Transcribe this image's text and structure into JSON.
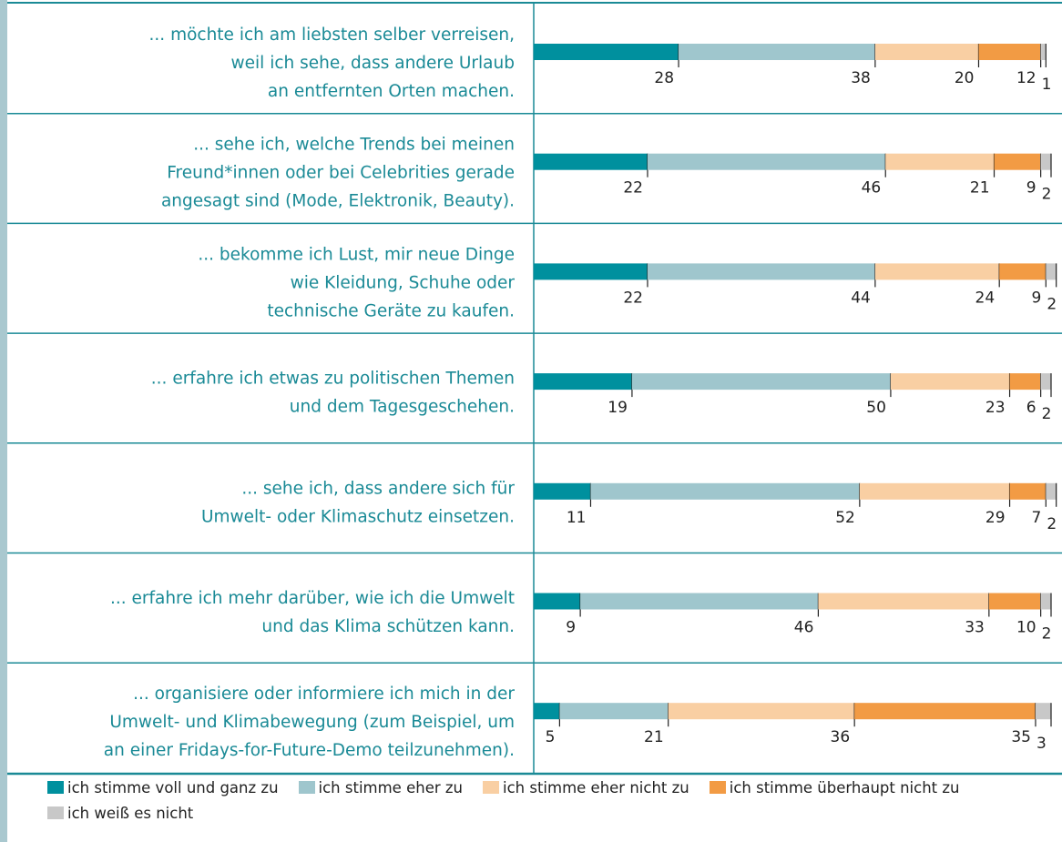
{
  "chart_data": {
    "type": "stacked-bar",
    "categories": [
      [
        "... möchte ich am liebsten selber verreisen,",
        "weil ich sehe, dass andere Urlaub",
        "an entfernten Orten machen."
      ],
      [
        "... sehe ich, welche Trends bei meinen",
        "Freund*innen oder bei Celebrities gerade",
        "angesagt sind (Mode, Elektronik, Beauty)."
      ],
      [
        "... bekomme ich Lust, mir neue Dinge",
        "wie Kleidung, Schuhe oder",
        "technische Geräte zu kaufen."
      ],
      [
        "... erfahre ich etwas zu politischen Themen",
        "und dem Tagesgeschehen."
      ],
      [
        "... sehe ich, dass andere sich für",
        "Umwelt- oder Klimaschutz einsetzen."
      ],
      [
        "... erfahre ich mehr darüber, wie ich die Umwelt",
        "und das Klima schützen kann."
      ],
      [
        "... organisiere oder informiere ich mich in der",
        "Umwelt- und Klimabewegung (zum Beispiel, um",
        "an einer Fridays-for-Future-Demo teilzunehmen)."
      ]
    ],
    "series": [
      {
        "name": "ich stimme voll und ganz zu",
        "color": "#00909e",
        "values": [
          28,
          22,
          22,
          19,
          11,
          9,
          5
        ]
      },
      {
        "name": "ich stimme eher zu",
        "color": "#9fc6cd",
        "values": [
          38,
          46,
          44,
          50,
          52,
          46,
          21
        ]
      },
      {
        "name": "ich stimme eher nicht zu",
        "color": "#f9cfa3",
        "values": [
          20,
          21,
          24,
          23,
          29,
          33,
          36
        ]
      },
      {
        "name": "ich stimme überhaupt nicht zu",
        "color": "#f29b44",
        "values": [
          12,
          9,
          9,
          6,
          7,
          10,
          35
        ]
      },
      {
        "name": "ich weiß es nicht",
        "color": "#c8c8c8",
        "values": [
          1,
          2,
          2,
          2,
          2,
          2,
          3
        ]
      }
    ],
    "xlim": [
      0,
      100
    ]
  }
}
